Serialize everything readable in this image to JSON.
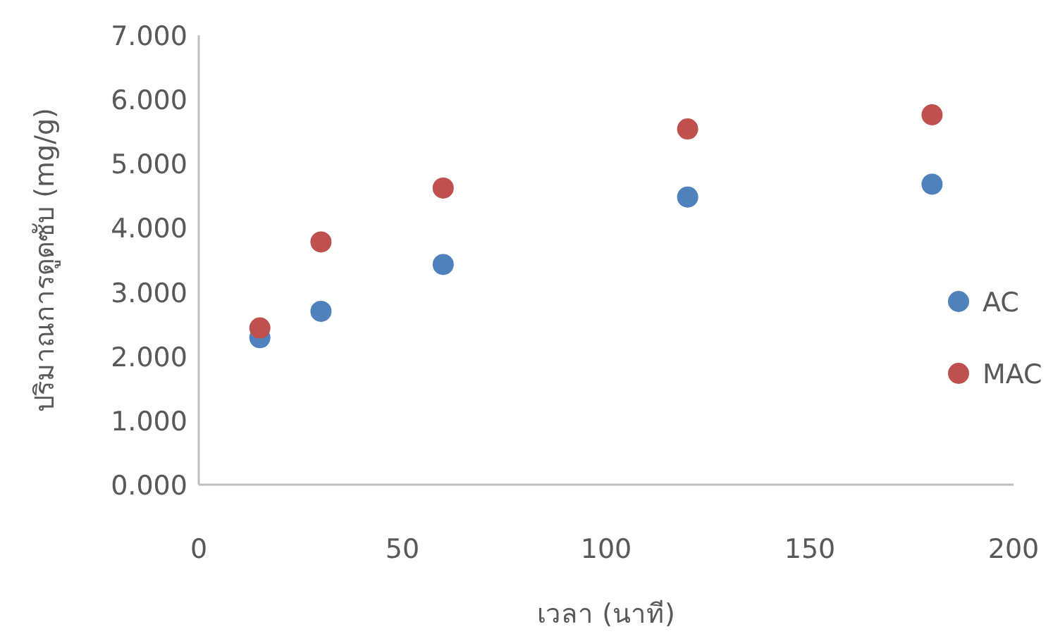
{
  "chart_data": {
    "type": "scatter",
    "xlabel": "เวลา (นาที)",
    "ylabel": "ปริมาณการดูดซับ (mg/g)",
    "x": [
      15,
      30,
      60,
      120,
      180
    ],
    "series": [
      {
        "name": "AC",
        "color": "#4f81bd",
        "values": [
          2.29,
          2.7,
          3.43,
          4.48,
          4.68
        ]
      },
      {
        "name": "MAC",
        "color": "#c0504d",
        "values": [
          2.44,
          3.78,
          4.62,
          5.54,
          5.76
        ]
      }
    ],
    "xlim": [
      0,
      200
    ],
    "xticks": [
      0,
      50,
      100,
      150,
      200
    ],
    "ylim": [
      0,
      7
    ],
    "yticks": [
      {
        "value": 0,
        "label": "0.000"
      },
      {
        "value": 1,
        "label": "1.000"
      },
      {
        "value": 2,
        "label": "2.000"
      },
      {
        "value": 3,
        "label": "3.000"
      },
      {
        "value": 4,
        "label": "4.000"
      },
      {
        "value": 5,
        "label": "5.000"
      },
      {
        "value": 6,
        "label": "6.000"
      },
      {
        "value": 7,
        "label": "7.000"
      }
    ],
    "marker": "circle",
    "grid": false,
    "legend": "right"
  }
}
